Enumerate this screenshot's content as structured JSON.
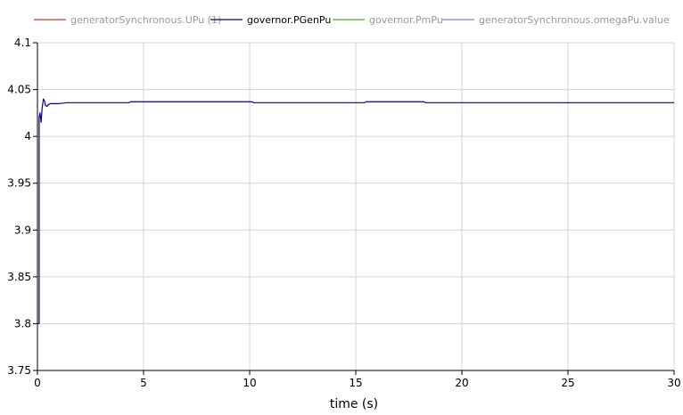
{
  "chart_data": {
    "type": "line",
    "xlabel": "time (s)",
    "ylabel": "",
    "xlim": [
      0,
      30
    ],
    "ylim": [
      3.75,
      4.1
    ],
    "x_ticks": [
      "0",
      "5",
      "10",
      "15",
      "20",
      "25",
      "30"
    ],
    "y_ticks": [
      "3.75",
      "3.8",
      "3.85",
      "3.9",
      "3.95",
      "4",
      "4.05",
      "4.1"
    ],
    "grid": true,
    "legend_position": "top",
    "legend": [
      {
        "name": "generatorSynchronous.UPu (1)",
        "color": "#c0392b",
        "active": false
      },
      {
        "name": "governor.PGenPu",
        "color": "#00008b",
        "active": true
      },
      {
        "name": "governor.PmPu",
        "color": "#4caf20",
        "active": false
      },
      {
        "name": "generatorSynchronous.omegaPu.value",
        "color": "#a070d0",
        "active": false
      }
    ],
    "series": [
      {
        "name": "governor.PGenPu",
        "color": "#00008b",
        "x": [
          0,
          0.08,
          0.08,
          0.12,
          0.17,
          0.22,
          0.28,
          0.33,
          0.38,
          0.45,
          0.52,
          0.62,
          0.75,
          1.0,
          1.4,
          2.0,
          3.0,
          4.3,
          4.4,
          6.0,
          8.0,
          10.1,
          10.2,
          12.0,
          15.4,
          15.5,
          17.0,
          18.2,
          18.3,
          22.0,
          26.0,
          30.0
        ],
        "y": [
          3.8,
          3.8,
          4.02,
          4.025,
          4.015,
          4.03,
          4.04,
          4.038,
          4.033,
          4.032,
          4.034,
          4.035,
          4.035,
          4.035,
          4.036,
          4.036,
          4.036,
          4.036,
          4.037,
          4.037,
          4.037,
          4.037,
          4.036,
          4.036,
          4.036,
          4.037,
          4.037,
          4.037,
          4.036,
          4.036,
          4.036,
          4.036
        ]
      }
    ]
  }
}
